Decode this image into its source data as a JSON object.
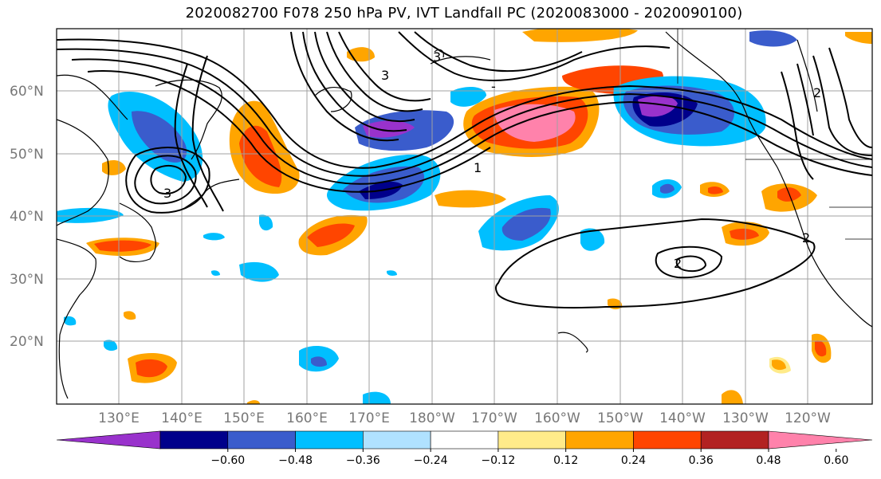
{
  "title": "2020082700 F078 250 hPa PV, IVT Landfall PC (2020083000 - 2020090100)",
  "lat_labels": [
    "60°N",
    "50°N",
    "40°N",
    "30°N",
    "20°N"
  ],
  "lon_labels": [
    "130°E",
    "140°E",
    "150°E",
    "160°E",
    "170°E",
    "180°W",
    "170°W",
    "160°W",
    "150°W",
    "140°W",
    "130°W",
    "120°W"
  ],
  "contour_labels": [
    "3",
    "1",
    "3",
    "2",
    "2",
    "2",
    "-",
    "3"
  ],
  "colorbar": {
    "ticks": [
      "−0.60",
      "−0.48",
      "−0.36",
      "−0.24",
      "−0.12",
      "0.12",
      "0.24",
      "0.36",
      "0.48",
      "0.60"
    ],
    "colors": [
      "#9932cc",
      "#00008b",
      "#3a5ccc",
      "#00bfff",
      "#b0e2ff",
      "#ffffff",
      "#ffeb8a",
      "#ffa500",
      "#ff4500",
      "#b22222",
      "#ff82ab"
    ]
  }
}
